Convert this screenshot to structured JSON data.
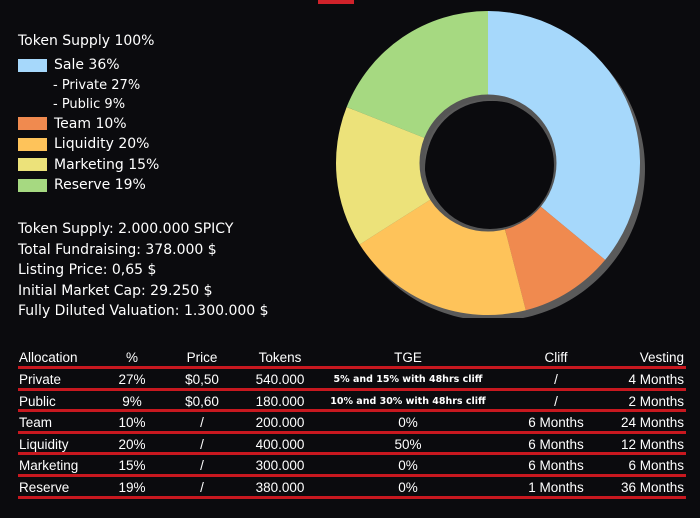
{
  "chart_data": {
    "type": "pie",
    "title": "",
    "categories": [
      "Sale",
      "Team",
      "Liquidity",
      "Marketing",
      "Reserve"
    ],
    "values": [
      36,
      10,
      20,
      15,
      19
    ],
    "colors": [
      "#a6d8fb",
      "#f08a4f",
      "#fec35a",
      "#ece27a",
      "#a6d981"
    ],
    "hole": true,
    "legend_position": "left"
  },
  "legend": {
    "title": "Token Supply 100%",
    "rows": [
      {
        "kind": "main",
        "label": "Sale 36%",
        "color": "#a6d8fb"
      },
      {
        "kind": "sub",
        "label": "- Private 27%"
      },
      {
        "kind": "sub",
        "label": "- Public 9%"
      },
      {
        "kind": "main",
        "label": "Team 10%",
        "color": "#f08a4f"
      },
      {
        "kind": "main",
        "label": "Liquidity 20%",
        "color": "#fec35a"
      },
      {
        "kind": "main",
        "label": "Marketing 15%",
        "color": "#ece27a"
      },
      {
        "kind": "main",
        "label": "Reserve 19%",
        "color": "#a6d981"
      }
    ]
  },
  "stats": [
    "Token Supply: 2.000.000 SPICY",
    "Total Fundraising: 378.000 $",
    "Listing Price: 0,65 $",
    "Initial Market Cap: 29.250 $",
    "Fully Diluted Valuation: 1.300.000 $"
  ],
  "table": {
    "headers": {
      "allocation": "Allocation",
      "percent": "%",
      "price": "Price",
      "tokens": "Tokens",
      "tge": "TGE",
      "cliff": "Cliff",
      "vesting": "Vesting"
    },
    "rows": [
      {
        "allocation": "Private",
        "percent": "27%",
        "price": "$0,50",
        "tokens": "540.000",
        "tge": "5% and 15% with 48hrs cliff",
        "tge_small": true,
        "cliff": "/",
        "vesting": "4 Months"
      },
      {
        "allocation": "Public",
        "percent": "9%",
        "price": "$0,60",
        "tokens": "180.000",
        "tge": "10% and 30% with 48hrs cliff",
        "tge_small": true,
        "cliff": "/",
        "vesting": "2  Months"
      },
      {
        "allocation": "Team",
        "percent": "10%",
        "price": "/",
        "tokens": "200.000",
        "tge": "0%",
        "tge_small": false,
        "cliff": "6 Months",
        "vesting": "24 Months"
      },
      {
        "allocation": "Liquidity",
        "percent": "20%",
        "price": "/",
        "tokens": "400.000",
        "tge": "50%",
        "tge_small": false,
        "cliff": "6 Months",
        "vesting": "12 Months"
      },
      {
        "allocation": "Marketing",
        "percent": "15%",
        "price": "/",
        "tokens": "300.000",
        "tge": "0%",
        "tge_small": false,
        "cliff": "6 Months",
        "vesting": "6 Months"
      },
      {
        "allocation": "Reserve",
        "percent": "19%",
        "price": "/",
        "tokens": "380.000",
        "tge": "0%",
        "tge_small": false,
        "cliff": "1 Months",
        "vesting": "36 Months"
      }
    ],
    "separator_color": "#c8181f"
  }
}
